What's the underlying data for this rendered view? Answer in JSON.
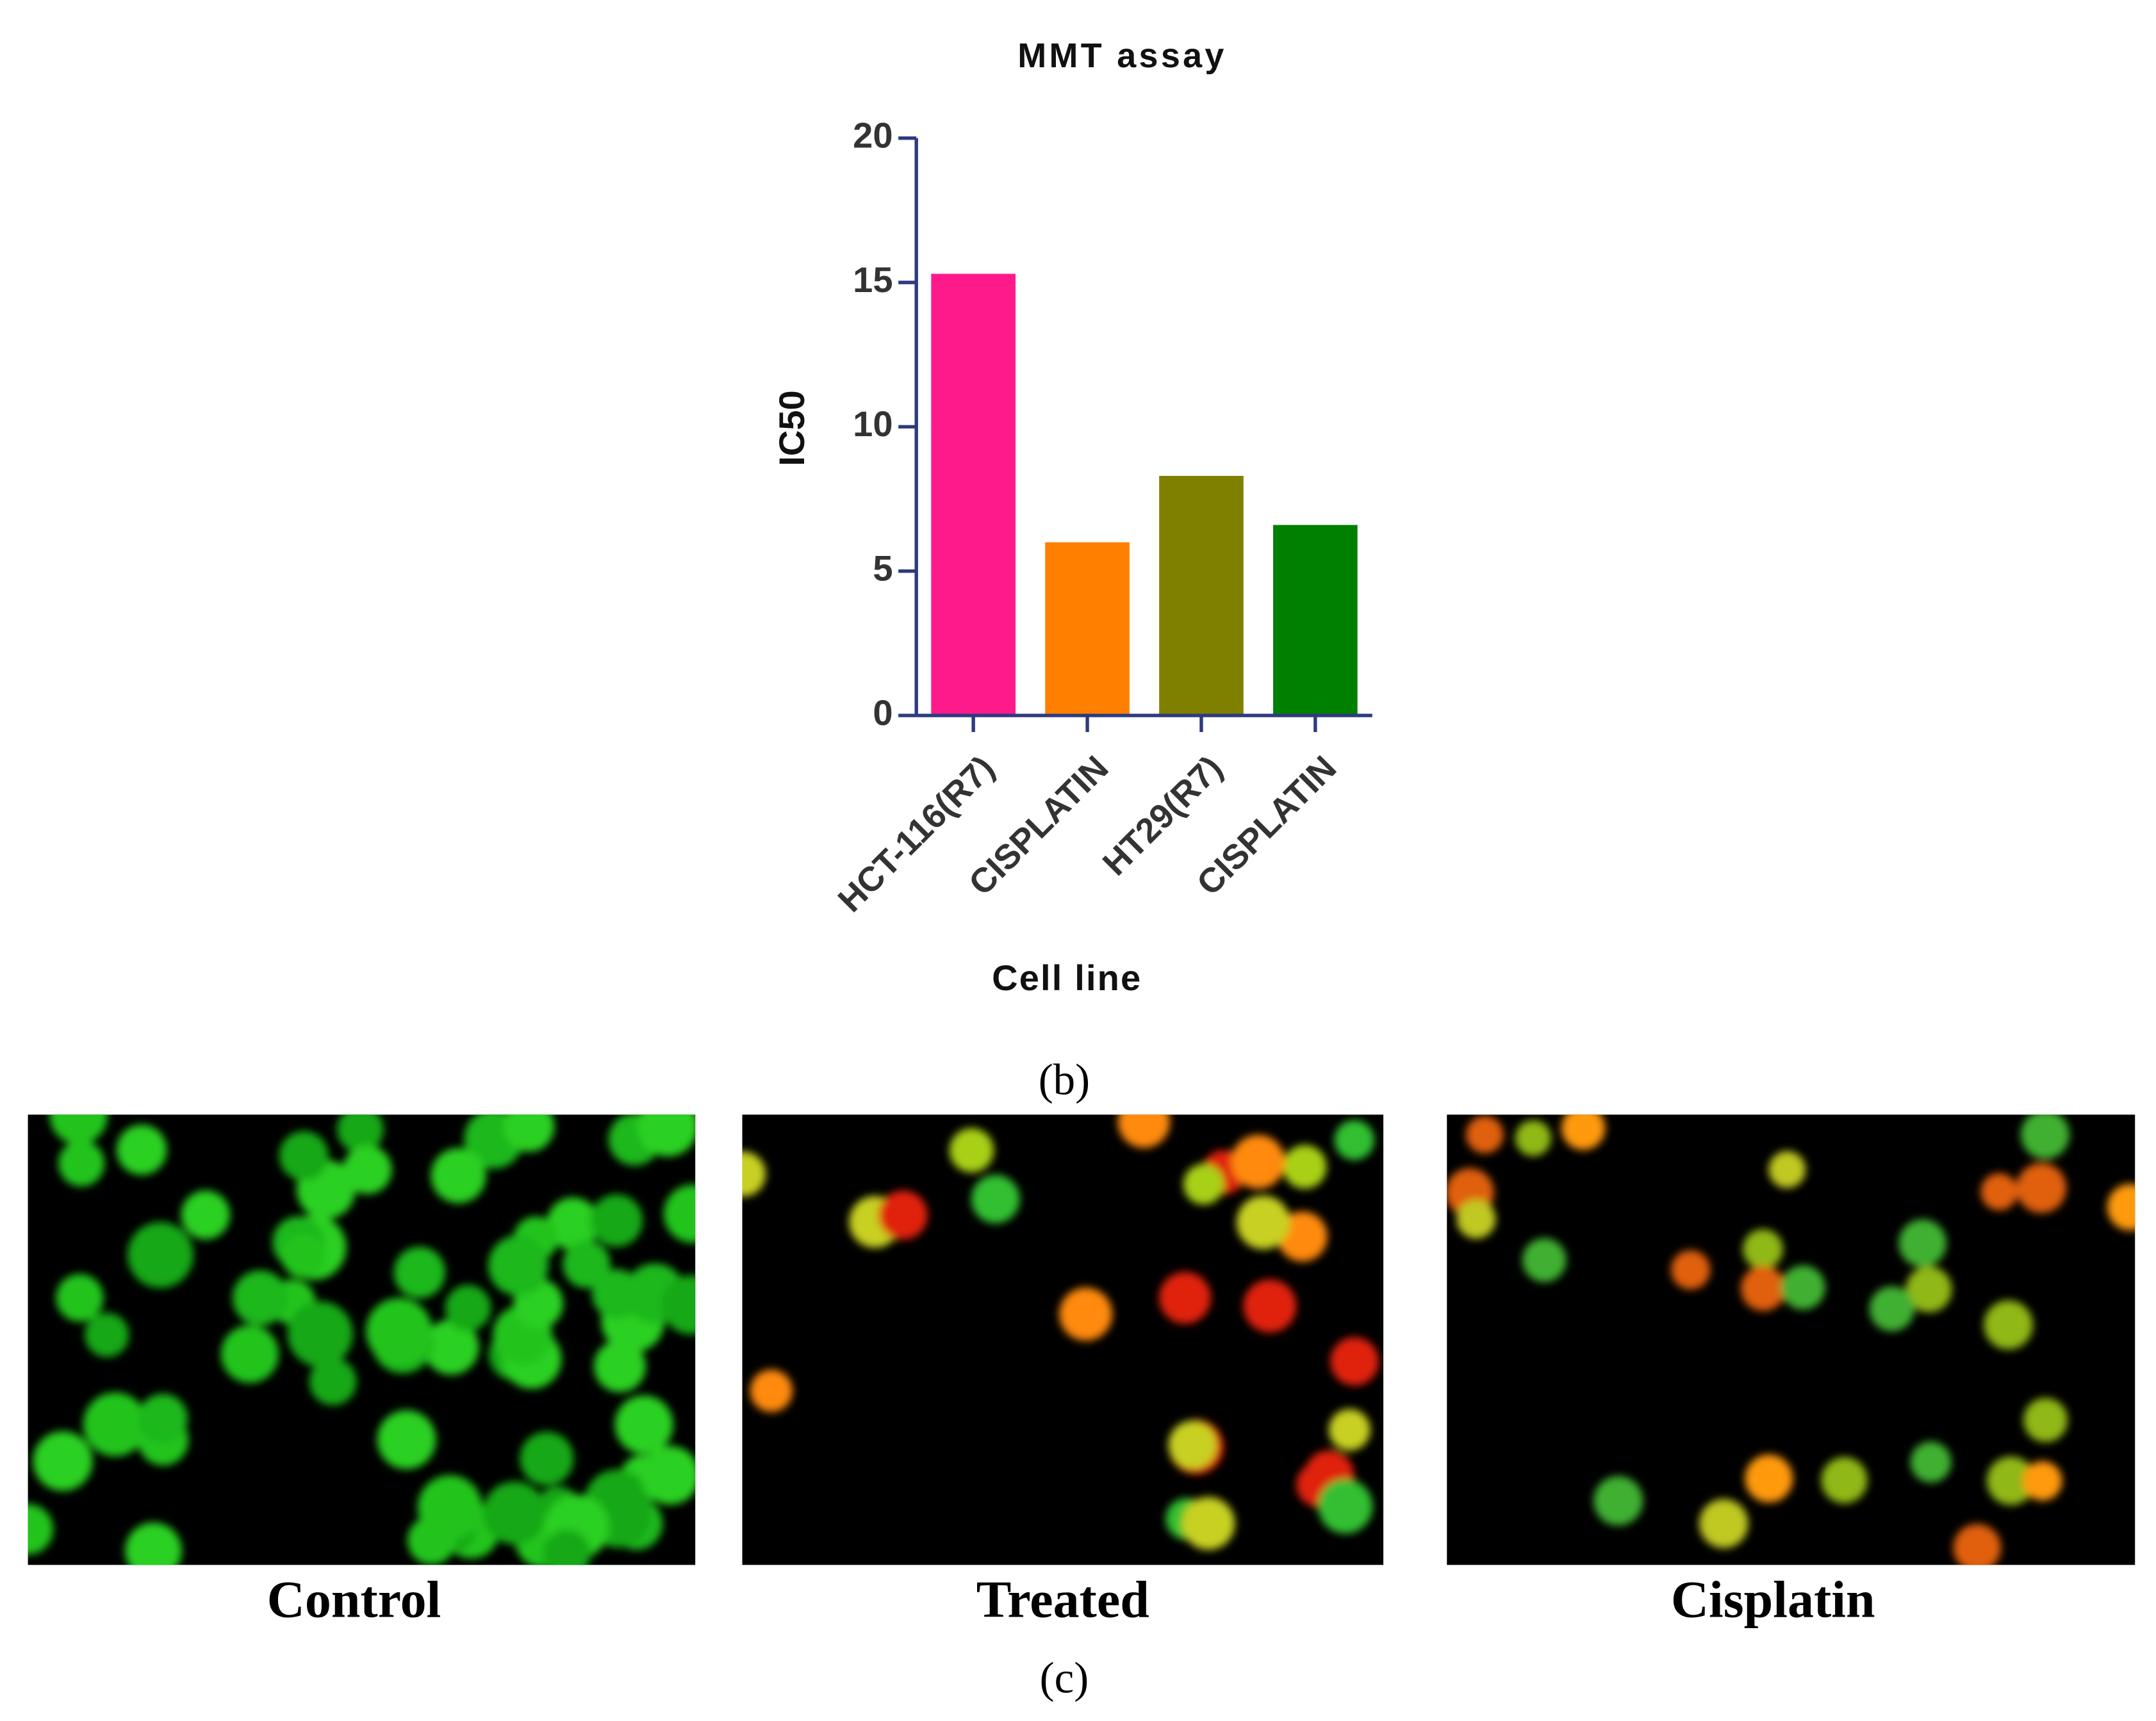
{
  "chart_data": {
    "type": "bar",
    "title": "MMT assay",
    "x_label": "Cell line",
    "y_label": "IC50",
    "panel_label": "(b)",
    "categories": [
      "HCT-116(R7)",
      "CISPLATIN",
      "HT29(R7)",
      "CISPLATIN"
    ],
    "values": [
      15.3,
      6.0,
      8.3,
      6.6
    ],
    "colors": [
      "#ff1a8c",
      "#ff8000",
      "#808000",
      "#008000"
    ],
    "ylim": [
      0,
      20
    ],
    "yticks": [
      0,
      5,
      10,
      15,
      20
    ]
  },
  "panel_c": {
    "captions": [
      "Control",
      "Treated",
      "Cisplatin"
    ],
    "label": "(c)"
  }
}
